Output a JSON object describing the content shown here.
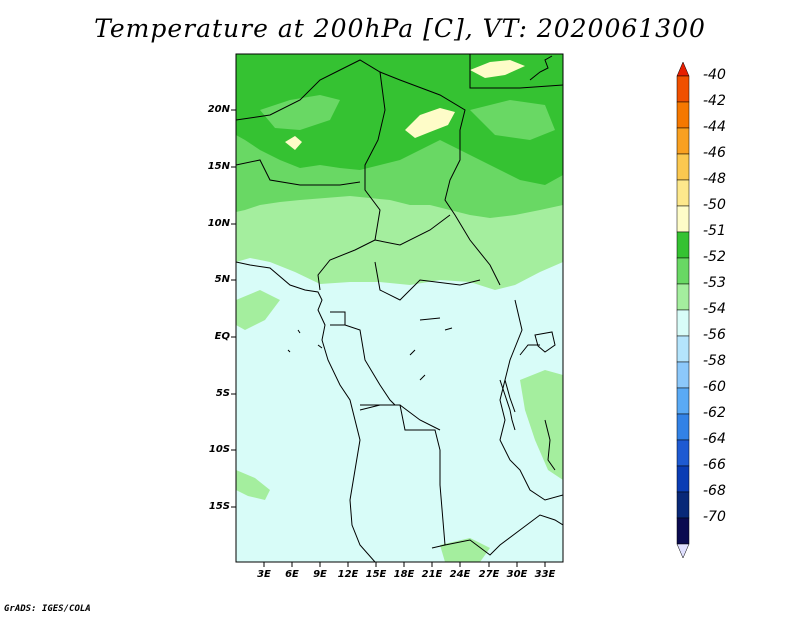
{
  "title": "Temperature at 200hPa [C], VT: 2020061300",
  "credit": "GrADS: IGES/COLA",
  "lat_labels": [
    "20N",
    "15N",
    "10N",
    "5N",
    "EQ",
    "5S",
    "10S",
    "15S"
  ],
  "lon_labels": [
    "3E",
    "6E",
    "9E",
    "12E",
    "15E",
    "18E",
    "21E",
    "24E",
    "27E",
    "30E",
    "33E"
  ],
  "colorbar": {
    "labels": [
      "-40",
      "-42",
      "-44",
      "-46",
      "-48",
      "-50",
      "-51",
      "-52",
      "-53",
      "-54",
      "-56",
      "-58",
      "-60",
      "-62",
      "-64",
      "-66",
      "-68",
      "-70"
    ],
    "colors": [
      "#e61e00",
      "#f05000",
      "#f57800",
      "#f9a020",
      "#fbc850",
      "#fde88c",
      "#fefcc8",
      "#35c232",
      "#69d864",
      "#a4ee9e",
      "#d8fcf8",
      "#b4e4fc",
      "#8cc8fa",
      "#5aaaf5",
      "#3282e6",
      "#1e5ad2",
      "#0a3cb4",
      "#082878",
      "#0a0a50",
      "#e0e0ff"
    ]
  },
  "fields": {
    "background_color": "#d8fcf8",
    "green_light": "#a4ee9e",
    "green_mid": "#69d864",
    "green_dark": "#35c232",
    "yellow": "#fefcc8"
  }
}
